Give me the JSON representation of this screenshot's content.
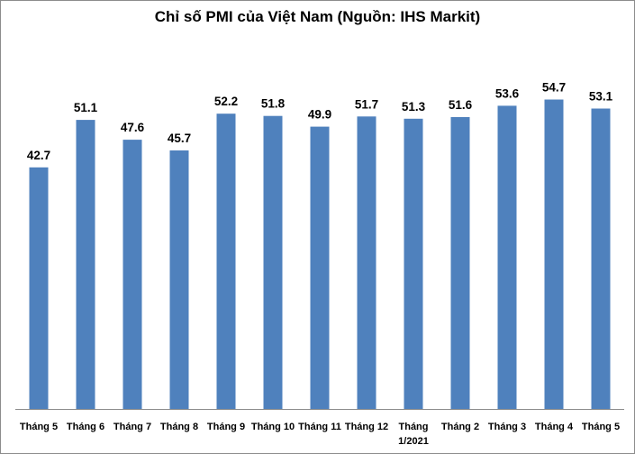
{
  "chart_data": {
    "type": "bar",
    "title": "Chỉ số PMI của Việt Nam (Nguồn: IHS Markit)",
    "categories": [
      [
        "Tháng 5"
      ],
      [
        "Tháng 6"
      ],
      [
        "Tháng 7"
      ],
      [
        "Tháng 8"
      ],
      [
        "Tháng 9"
      ],
      [
        "Tháng 10"
      ],
      [
        "Tháng 11"
      ],
      [
        "Tháng 12"
      ],
      [
        "Tháng",
        "1/2021"
      ],
      [
        "Tháng 2"
      ],
      [
        "Tháng 3"
      ],
      [
        "Tháng 4"
      ],
      [
        "Tháng 5"
      ]
    ],
    "values": [
      42.7,
      51.1,
      47.6,
      45.7,
      52.2,
      51.8,
      49.9,
      51.7,
      51.3,
      51.6,
      53.6,
      54.7,
      53.1
    ],
    "data_labels": [
      "42.7",
      "51.1",
      "47.6",
      "45.7",
      "52.2",
      "51.8",
      "49.9",
      "51.7",
      "51.3",
      "51.6",
      "53.6",
      "54.7",
      "53.1"
    ],
    "xlabel": "",
    "ylabel": "",
    "ylim": [
      0,
      56
    ],
    "grid": false,
    "legend": "none",
    "bar_color": "#4f81bd"
  }
}
